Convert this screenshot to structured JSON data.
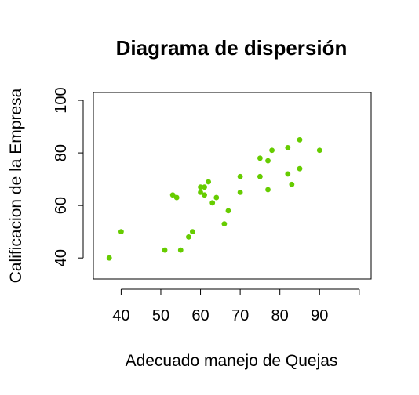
{
  "chart_data": {
    "type": "scatter",
    "title": "Diagrama de dispersión",
    "xlabel": "Adecuado manejo de Quejas",
    "ylabel": "Calificacion de la Empresa",
    "xlim": [
      33,
      103
    ],
    "ylim": [
      32,
      103
    ],
    "x_ticks": [
      40,
      50,
      60,
      70,
      80,
      90,
      100
    ],
    "x_tick_labels": [
      "40",
      "50",
      "60",
      "70",
      "80",
      "90",
      ""
    ],
    "y_ticks": [
      40,
      60,
      80,
      100
    ],
    "y_tick_labels": [
      "40",
      "60",
      "80",
      "100"
    ],
    "grid": false,
    "point_color": "#66cc00",
    "points": [
      {
        "x": 37,
        "y": 40
      },
      {
        "x": 40,
        "y": 50
      },
      {
        "x": 51,
        "y": 43
      },
      {
        "x": 53,
        "y": 64
      },
      {
        "x": 54,
        "y": 63
      },
      {
        "x": 55,
        "y": 43
      },
      {
        "x": 57,
        "y": 48
      },
      {
        "x": 58,
        "y": 50
      },
      {
        "x": 60,
        "y": 67
      },
      {
        "x": 60,
        "y": 65
      },
      {
        "x": 61,
        "y": 67
      },
      {
        "x": 61,
        "y": 64
      },
      {
        "x": 62,
        "y": 69
      },
      {
        "x": 63,
        "y": 61
      },
      {
        "x": 64,
        "y": 63
      },
      {
        "x": 66,
        "y": 53
      },
      {
        "x": 67,
        "y": 58
      },
      {
        "x": 70,
        "y": 71
      },
      {
        "x": 70,
        "y": 65
      },
      {
        "x": 75,
        "y": 78
      },
      {
        "x": 75,
        "y": 71
      },
      {
        "x": 77,
        "y": 77
      },
      {
        "x": 77,
        "y": 66
      },
      {
        "x": 78,
        "y": 81
      },
      {
        "x": 82,
        "y": 82
      },
      {
        "x": 82,
        "y": 72
      },
      {
        "x": 83,
        "y": 68
      },
      {
        "x": 85,
        "y": 85
      },
      {
        "x": 85,
        "y": 74
      },
      {
        "x": 90,
        "y": 81
      }
    ]
  }
}
